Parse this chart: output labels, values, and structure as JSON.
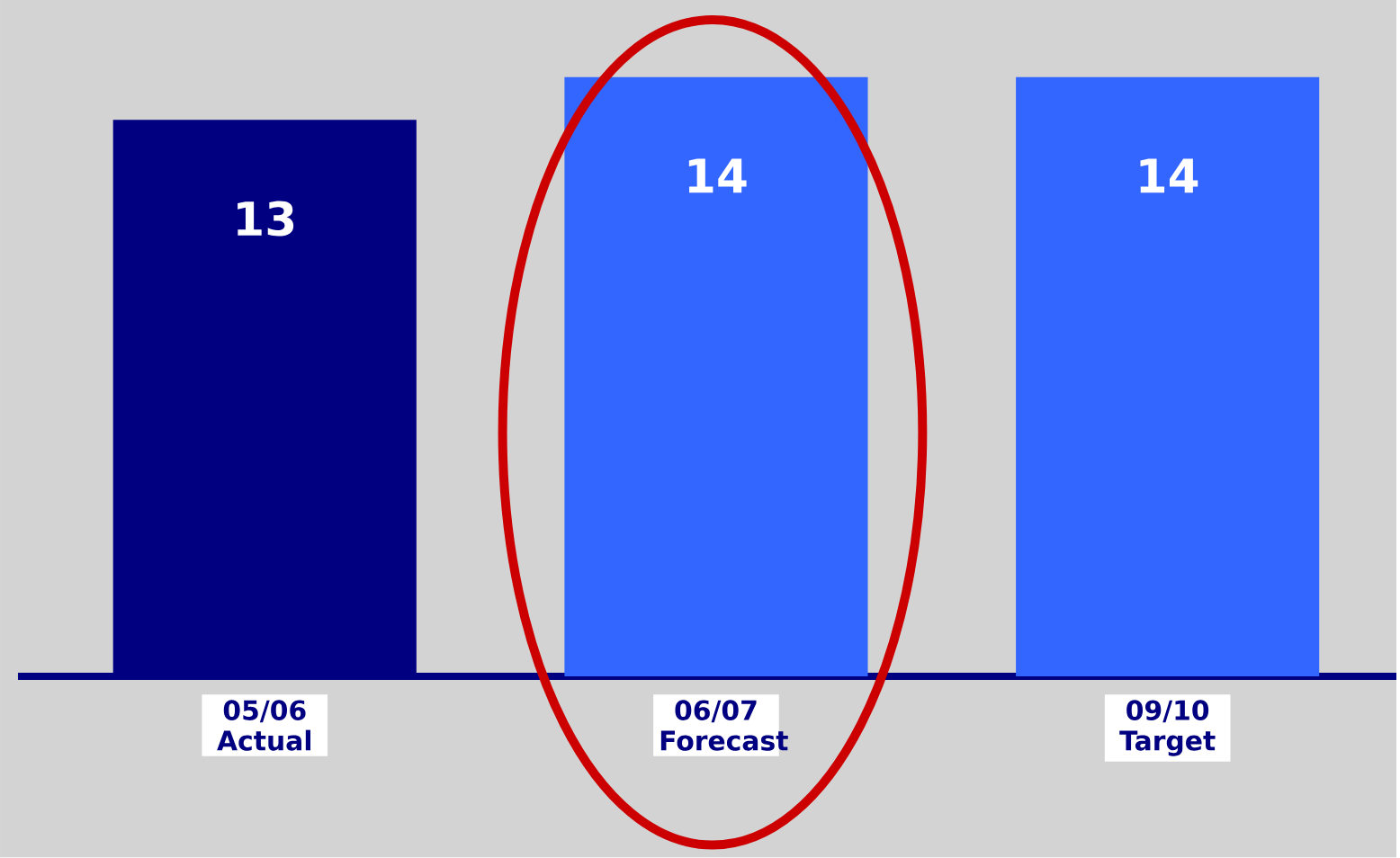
{
  "chart_data": {
    "type": "bar",
    "categories": [
      "05/06 Actual",
      "06/07 Forecast",
      "09/10 Target"
    ],
    "values": [
      13,
      14,
      14
    ],
    "colors": [
      "#000080",
      "#3366ff",
      "#3366ff"
    ],
    "data_labels": true
  }
}
